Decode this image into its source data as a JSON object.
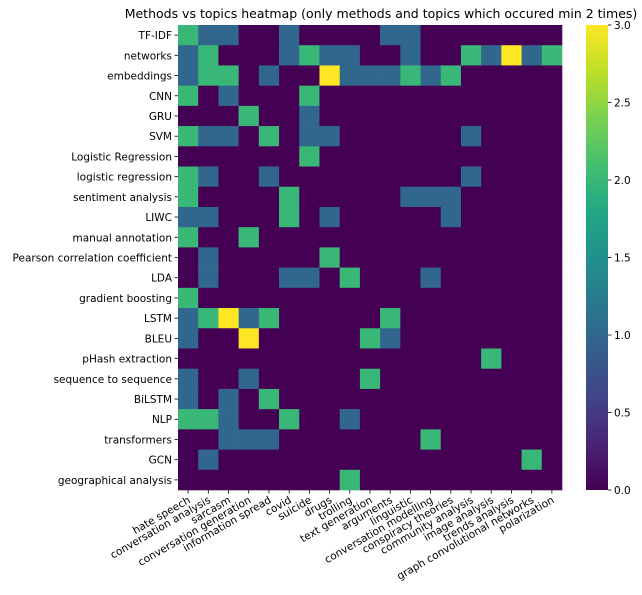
{
  "chart_data": {
    "type": "heatmap",
    "title": "Methods vs topics heatmap (only methods and topics which occured min 2 times)",
    "xlabel": "",
    "ylabel": "",
    "rows": [
      "TF-IDF",
      "networks",
      "embeddings",
      "CNN",
      "GRU",
      "SVM",
      "Logistic Regression",
      "logistic regression",
      "sentiment analysis",
      "LIWC",
      "manual annotation",
      "Pearson correlation coefficient",
      "LDA",
      "gradient boosting",
      "LSTM",
      "BLEU",
      "pHash extraction",
      "sequence to sequence",
      "BiLSTM",
      "NLP",
      "transformers",
      "GCN",
      "geographical analysis"
    ],
    "columns": [
      "hate speech",
      "conversation analysis",
      "sarcasm",
      "conversation generation",
      "information spread",
      "covid",
      "suicide",
      "drugs",
      "trolling",
      "text generation",
      "arguments",
      "linguistic",
      "conversation modelling",
      "conspiracy theories",
      "community analysis",
      "image analysis",
      "trends analysis",
      "graph convolutional networks",
      "polarization"
    ],
    "values": [
      [
        2,
        1,
        1,
        0,
        0,
        1,
        0,
        0,
        0,
        0,
        1,
        1,
        0,
        0,
        0,
        0,
        0,
        0,
        0
      ],
      [
        1,
        2,
        0,
        0,
        0,
        1,
        2,
        1,
        1,
        0,
        0,
        1,
        0,
        0,
        2,
        1,
        3,
        1,
        2
      ],
      [
        1,
        2,
        2,
        0,
        1,
        0,
        0,
        3,
        1,
        1,
        1,
        2,
        1,
        2,
        0,
        0,
        0,
        0,
        0
      ],
      [
        2,
        0,
        1,
        0,
        0,
        0,
        2,
        0,
        0,
        0,
        0,
        0,
        0,
        0,
        0,
        0,
        0,
        0,
        0
      ],
      [
        0,
        0,
        0,
        2,
        0,
        0,
        1,
        0,
        0,
        0,
        0,
        0,
        0,
        0,
        0,
        0,
        0,
        0,
        0
      ],
      [
        2,
        1,
        1,
        0,
        2,
        0,
        1,
        1,
        0,
        0,
        0,
        0,
        0,
        0,
        1,
        0,
        0,
        0,
        0
      ],
      [
        0,
        0,
        0,
        0,
        0,
        0,
        2,
        0,
        0,
        0,
        0,
        0,
        0,
        0,
        0,
        0,
        0,
        0,
        0
      ],
      [
        2,
        1,
        0,
        0,
        1,
        0,
        0,
        0,
        0,
        0,
        0,
        0,
        0,
        0,
        1,
        0,
        0,
        0,
        0
      ],
      [
        2,
        0,
        0,
        0,
        0,
        2,
        0,
        0,
        0,
        0,
        0,
        1,
        1,
        1,
        0,
        0,
        0,
        0,
        0
      ],
      [
        1,
        1,
        0,
        0,
        0,
        2,
        0,
        1,
        0,
        0,
        0,
        0,
        0,
        1,
        0,
        0,
        0,
        0,
        0
      ],
      [
        2,
        0,
        0,
        2,
        0,
        0,
        0,
        0,
        0,
        0,
        0,
        0,
        0,
        0,
        0,
        0,
        0,
        0,
        0
      ],
      [
        0,
        1,
        0,
        0,
        0,
        0,
        0,
        2,
        0,
        0,
        0,
        0,
        0,
        0,
        0,
        0,
        0,
        0,
        0
      ],
      [
        0,
        1,
        0,
        0,
        0,
        1,
        1,
        0,
        2,
        0,
        0,
        0,
        1,
        0,
        0,
        0,
        0,
        0,
        0
      ],
      [
        2,
        0,
        0,
        0,
        0,
        0,
        0,
        0,
        0,
        0,
        0,
        0,
        0,
        0,
        0,
        0,
        0,
        0,
        0
      ],
      [
        1,
        2,
        3,
        1,
        2,
        0,
        0,
        0,
        0,
        0,
        2,
        0,
        0,
        0,
        0,
        0,
        0,
        0,
        0
      ],
      [
        1,
        0,
        0,
        3,
        0,
        0,
        0,
        0,
        0,
        2,
        1,
        0,
        0,
        0,
        0,
        0,
        0,
        0,
        0
      ],
      [
        0,
        0,
        0,
        0,
        0,
        0,
        0,
        0,
        0,
        0,
        0,
        0,
        0,
        0,
        0,
        2,
        0,
        0,
        0
      ],
      [
        1,
        0,
        0,
        1,
        0,
        0,
        0,
        0,
        0,
        2,
        0,
        0,
        0,
        0,
        0,
        0,
        0,
        0,
        0
      ],
      [
        1,
        0,
        1,
        0,
        2,
        0,
        0,
        0,
        0,
        0,
        0,
        0,
        0,
        0,
        0,
        0,
        0,
        0,
        0
      ],
      [
        2,
        2,
        1,
        0,
        0,
        2,
        0,
        0,
        1,
        0,
        0,
        0,
        0,
        0,
        0,
        0,
        0,
        0,
        0
      ],
      [
        0,
        0,
        1,
        1,
        1,
        0,
        0,
        0,
        0,
        0,
        0,
        0,
        2,
        0,
        0,
        0,
        0,
        0,
        0
      ],
      [
        0,
        1,
        0,
        0,
        0,
        0,
        0,
        0,
        0,
        0,
        0,
        0,
        0,
        0,
        0,
        0,
        0,
        2,
        0
      ],
      [
        0,
        0,
        0,
        0,
        0,
        0,
        0,
        0,
        2,
        0,
        0,
        0,
        0,
        0,
        0,
        0,
        0,
        0,
        0
      ]
    ],
    "colormap": "viridis",
    "vmin": 0,
    "vmax": 3,
    "colorbar": {
      "ticks": [
        0.0,
        0.5,
        1.0,
        1.5,
        2.0,
        2.5,
        3.0
      ],
      "tick_labels": [
        "0.0",
        "0.5",
        "1.0",
        "1.5",
        "2.0",
        "2.5",
        "3.0"
      ],
      "placement": "right"
    },
    "grid": false
  }
}
